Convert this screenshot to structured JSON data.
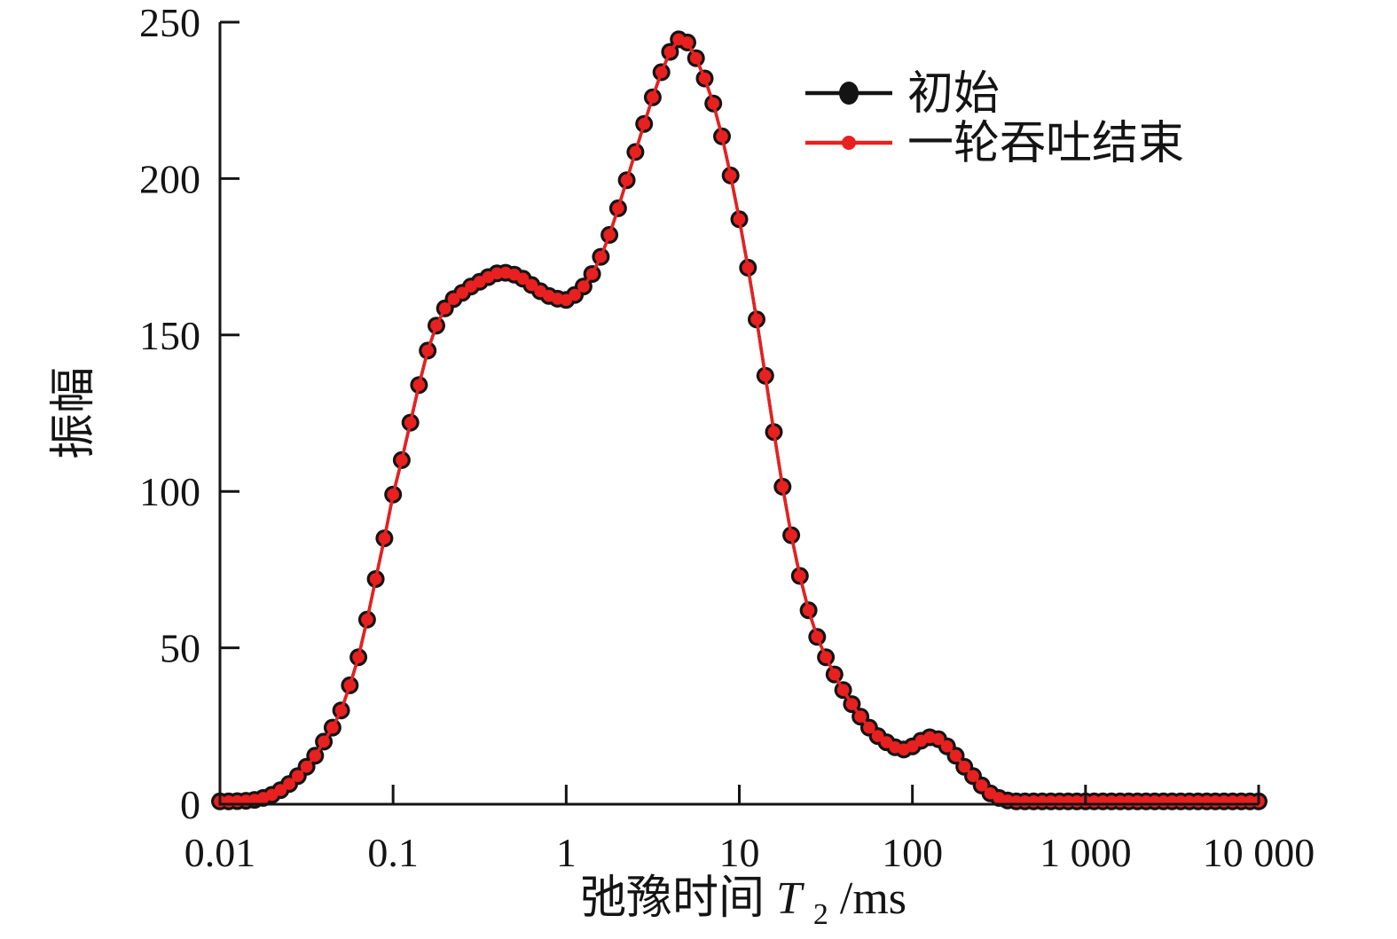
{
  "chart_data": {
    "type": "line",
    "title": "",
    "x_axis": {
      "scale": "log",
      "range_ms": [
        0.01,
        10000
      ],
      "tick_labels": [
        "0.01",
        "0.1",
        "1",
        "10",
        "100",
        "1 000",
        "10 000"
      ],
      "label_parts": {
        "prefix": "弛豫时间",
        "symbol": "T",
        "subscript": "2",
        "unit": "/ms"
      }
    },
    "y_axis": {
      "label": "振幅",
      "range": [
        0,
        250
      ],
      "tick_values": [
        0,
        50,
        100,
        150,
        200,
        250
      ],
      "tick_labels": [
        "0",
        "50",
        "100",
        "150",
        "200",
        "250"
      ]
    },
    "legend": {
      "position": "inside-top-right"
    },
    "series": [
      {
        "name": "初始",
        "color": "#141414",
        "marker_radius": 10,
        "line_width": 3.5
      },
      {
        "name": "一轮吞吐结束",
        "color": "#e8201f",
        "marker_radius": 6.8,
        "line_width": 3.5
      }
    ],
    "note": "Both series overlap exactly; they share the amplitude array below.",
    "x_log10_start": -2,
    "x_log10_step": 0.05,
    "amplitudes": [
      0.9,
      0.9,
      1.0,
      1.1,
      1.4,
      2.0,
      3.0,
      4.5,
      6.5,
      9.0,
      12.0,
      15.5,
      20.0,
      24.5,
      30.0,
      38.0,
      47.0,
      59.0,
      72.0,
      85.0,
      99.0,
      110.0,
      122.0,
      134.0,
      145.0,
      153.0,
      158.5,
      161.5,
      163.5,
      165.5,
      167.0,
      168.5,
      169.7,
      169.9,
      169.3,
      168.0,
      166.0,
      164.0,
      162.5,
      161.6,
      161.2,
      162.8,
      165.5,
      169.5,
      175.0,
      182.0,
      190.5,
      199.5,
      208.5,
      217.5,
      226.0,
      234.0,
      240.5,
      244.5,
      243.5,
      238.5,
      232.0,
      224.0,
      213.5,
      201.0,
      187.0,
      171.5,
      155.0,
      137.0,
      119.0,
      101.5,
      86.0,
      73.0,
      62.0,
      53.5,
      47.0,
      41.5,
      36.5,
      32.0,
      28.0,
      24.5,
      21.8,
      19.8,
      18.2,
      17.5,
      18.5,
      20.3,
      21.4,
      20.8,
      18.5,
      15.5,
      12.0,
      9.0,
      6.0,
      3.5,
      2.0,
      1.2,
      0.9,
      0.9,
      0.9,
      0.9,
      0.9,
      0.9,
      0.9,
      0.9,
      0.9,
      0.9,
      0.9,
      0.9,
      0.9,
      0.9,
      0.9,
      0.9,
      0.9,
      0.9,
      0.9,
      0.9,
      0.9,
      0.9,
      0.9,
      0.9,
      0.9,
      0.9,
      0.9,
      0.9,
      0.9
    ]
  }
}
